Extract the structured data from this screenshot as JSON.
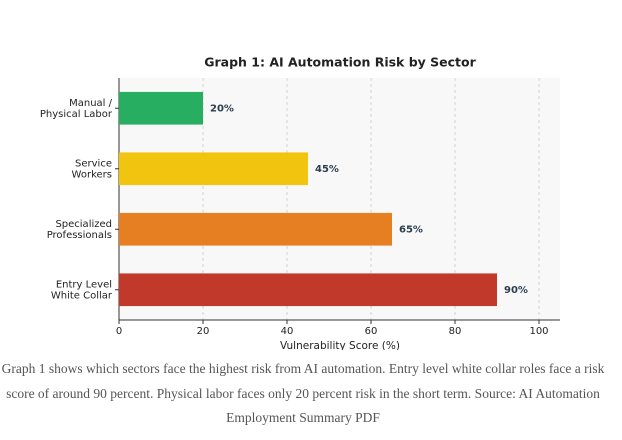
{
  "chart_data": {
    "type": "barh",
    "title": "Graph 1: AI Automation Risk by Sector",
    "categories": [
      "Manual /\nPhysical Labor",
      "Service\nWorkers",
      "Specialized\nProfessionals",
      "Entry Level\nWhite Collar"
    ],
    "values": [
      20,
      45,
      65,
      90
    ],
    "value_labels": [
      "20%",
      "45%",
      "65%",
      "90%"
    ],
    "colors": [
      "#27ae60",
      "#f1c40f",
      "#e67e22",
      "#c0392b"
    ],
    "xlabel": "Vulnerability Score (%)",
    "xlim": [
      0,
      105
    ],
    "xticks": [
      0,
      20,
      40,
      60,
      80,
      100
    ],
    "grid": true
  },
  "caption": "Graph 1 shows which sectors face the highest risk from AI automation. Entry level white collar roles face a risk score of around 90 percent. Physical labor faces only 20 percent risk in the short term. Source: AI Automation Employment Summary PDF"
}
